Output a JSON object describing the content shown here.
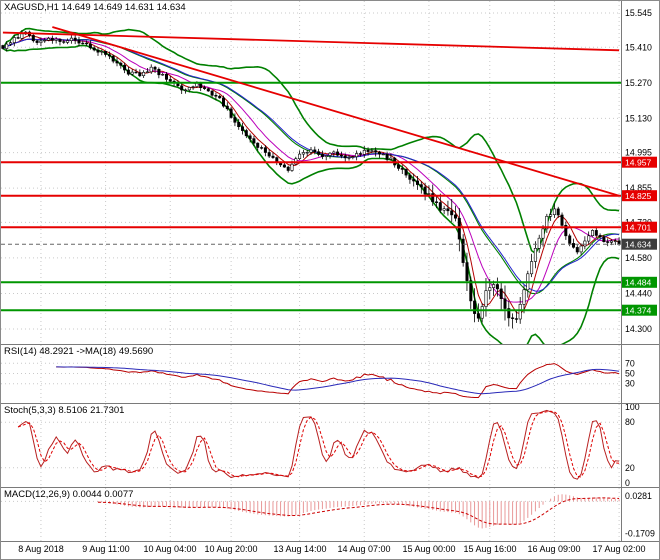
{
  "meta": {
    "application": "trading-terminal-chart",
    "symbol": "XAGUSD",
    "period": "H1"
  },
  "colors": {
    "bg": "#ffffff",
    "grid": "#c9c9c9",
    "axis_text": "#000000",
    "separator": "#7a7a7a",
    "candle": "#000000",
    "bull_fill": "#ffffff",
    "bear_fill": "#000000",
    "bb": "#008000",
    "ma_fast": "#b30000",
    "ma_mid": "#bb00bb",
    "ma_slow": "#2222cc",
    "level_red": "#e60000",
    "level_green": "#009600",
    "tag_current": "#3d3d3d",
    "rsi_line": "#b80000",
    "rsi_ma": "#2929b8",
    "stoch_k": "#b82020",
    "stoch_d": "#e00000",
    "macd_hist": "#e89898",
    "macd_signal": "#cc0000"
  },
  "chart_data": [
    {
      "type": "candlestick",
      "title": "XAGUSD,H1 14.649 14.649 14.631 14.634",
      "last_quote": {
        "open": 14.649,
        "high": 14.649,
        "low": 14.631,
        "close": 14.634
      },
      "bars": 163,
      "ylim": [
        14.3,
        15.545
      ],
      "y_ticks": [
        "15.545",
        "15.410",
        "15.270",
        "15.130",
        "14.995",
        "14.855",
        "14.720",
        "14.580",
        "14.440",
        "14.300"
      ],
      "x_labels": [
        {
          "text": "8 Aug 2018",
          "bar": 10
        },
        {
          "text": "9 Aug 11:00",
          "bar": 27
        },
        {
          "text": "10 Aug 04:00",
          "bar": 44
        },
        {
          "text": "10 Aug 20:00",
          "bar": 60
        },
        {
          "text": "13 Aug 14:00",
          "bar": 78
        },
        {
          "text": "14 Aug 07:00",
          "bar": 95
        },
        {
          "text": "15 Aug 00:00",
          "bar": 112
        },
        {
          "text": "15 Aug 16:00",
          "bar": 128
        },
        {
          "text": "16 Aug 09:00",
          "bar": 145
        },
        {
          "text": "17 Aug 02:00",
          "bar": 162
        }
      ],
      "close_anchors": [
        [
          0,
          15.405
        ],
        [
          3,
          15.445
        ],
        [
          6,
          15.465
        ],
        [
          9,
          15.425
        ],
        [
          12,
          15.445
        ],
        [
          15,
          15.43
        ],
        [
          18,
          15.44
        ],
        [
          21,
          15.425
        ],
        [
          24,
          15.4
        ],
        [
          27,
          15.385
        ],
        [
          30,
          15.345
        ],
        [
          33,
          15.31
        ],
        [
          36,
          15.3
        ],
        [
          39,
          15.325
        ],
        [
          42,
          15.3
        ],
        [
          45,
          15.265
        ],
        [
          48,
          15.24
        ],
        [
          51,
          15.265
        ],
        [
          54,
          15.235
        ],
        [
          57,
          15.205
        ],
        [
          60,
          15.14
        ],
        [
          63,
          15.08
        ],
        [
          66,
          15.035
        ],
        [
          69,
          14.995
        ],
        [
          72,
          14.96
        ],
        [
          75,
          14.93
        ],
        [
          78,
          14.985
        ],
        [
          81,
          15.005
        ],
        [
          84,
          14.98
        ],
        [
          87,
          15.0
        ],
        [
          90,
          14.975
        ],
        [
          93,
          14.99
        ],
        [
          96,
          15.005
        ],
        [
          99,
          14.99
        ],
        [
          102,
          14.965
        ],
        [
          105,
          14.92
        ],
        [
          108,
          14.875
        ],
        [
          111,
          14.835
        ],
        [
          114,
          14.795
        ],
        [
          117,
          14.76
        ],
        [
          119,
          14.73
        ],
        [
          121,
          14.56
        ],
        [
          123,
          14.41
        ],
        [
          125,
          14.35
        ],
        [
          127,
          14.43
        ],
        [
          129,
          14.485
        ],
        [
          131,
          14.41
        ],
        [
          133,
          14.35
        ],
        [
          135,
          14.335
        ],
        [
          137,
          14.46
        ],
        [
          139,
          14.565
        ],
        [
          141,
          14.655
        ],
        [
          143,
          14.735
        ],
        [
          145,
          14.775
        ],
        [
          147,
          14.705
        ],
        [
          149,
          14.635
        ],
        [
          151,
          14.605
        ],
        [
          153,
          14.65
        ],
        [
          155,
          14.685
        ],
        [
          157,
          14.66
        ],
        [
          159,
          14.635
        ],
        [
          161,
          14.645
        ],
        [
          162,
          14.634
        ]
      ],
      "overlays": [
        {
          "name": "Bollinger Bands",
          "period": 20,
          "deviation": 2,
          "color_key": "bb"
        },
        {
          "name": "MA fast",
          "period": 5,
          "color_key": "ma_fast"
        },
        {
          "name": "MA mid",
          "period": 10,
          "color_key": "ma_mid"
        },
        {
          "name": "MA slow",
          "period": 21,
          "color_key": "ma_slow"
        }
      ],
      "h_levels": [
        {
          "price": 15.27,
          "color": "green",
          "tagged": false
        },
        {
          "price": 14.957,
          "color": "red",
          "tagged": true
        },
        {
          "price": 14.825,
          "color": "red",
          "tagged": true
        },
        {
          "price": 14.701,
          "color": "red",
          "tagged": true
        },
        {
          "price": 14.484,
          "color": "green",
          "tagged": true
        },
        {
          "price": 14.374,
          "color": "green",
          "tagged": true
        }
      ],
      "trendlines": [
        {
          "from_bar": 0,
          "from_price": 15.468,
          "to_bar": 162,
          "to_price": 15.398,
          "color": "red"
        },
        {
          "from_bar": 13,
          "from_price": 15.49,
          "to_bar": 162,
          "to_price": 14.825,
          "color": "red"
        }
      ],
      "current_price": 14.634
    },
    {
      "type": "line",
      "indicator": "RSI",
      "label": "RSI(14) 48.2921 ->MA(18) 49.5690",
      "period": 14,
      "ma_period": 18,
      "last_rsi": 48.2921,
      "last_ma": 49.569,
      "ylim": [
        0,
        100
      ],
      "level_ticks": [
        "70",
        "50",
        "30"
      ],
      "levels": [
        70,
        50,
        30
      ]
    },
    {
      "type": "line",
      "indicator": "Stochastic",
      "label": "Stoch(5,3,3) 8.5106 21.7301",
      "params": [
        5,
        3,
        3
      ],
      "last_k": 8.5106,
      "last_d": 21.7301,
      "ylim": [
        0,
        100
      ],
      "y_ticks": [
        "100",
        "80",
        "20",
        "0"
      ],
      "tick_values": [
        100,
        80,
        20,
        0
      ],
      "levels": [
        80,
        20
      ]
    },
    {
      "type": "histogram+line",
      "indicator": "MACD",
      "label": "MACD(12,26,9) 0.0044 0.0077",
      "params": [
        12,
        26,
        9
      ],
      "last_macd": 0.0044,
      "last_signal": 0.0077,
      "ylim": [
        -0.19,
        0.055
      ],
      "y_ticks": [
        "0.0281",
        "-0.1709"
      ],
      "tick_values": [
        0.0281,
        -0.1709
      ]
    }
  ]
}
